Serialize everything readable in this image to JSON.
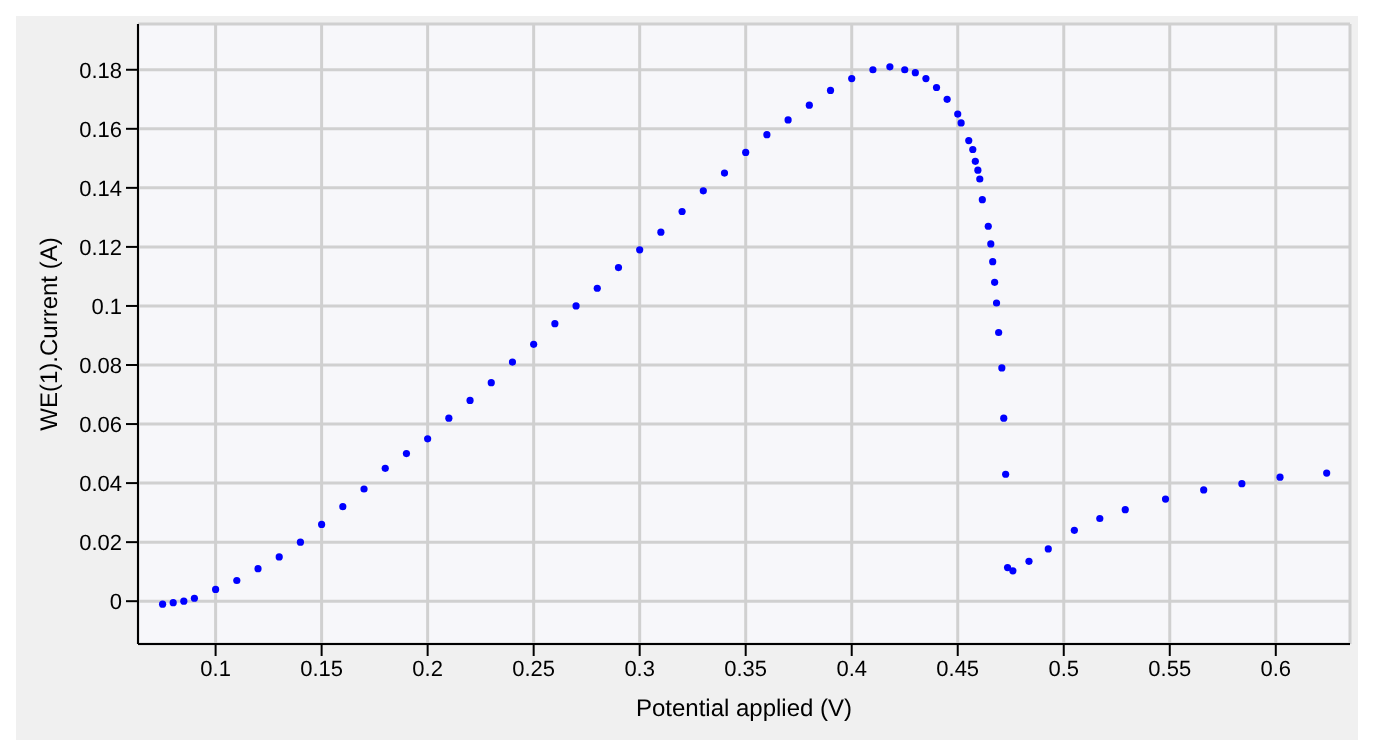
{
  "chart_data": {
    "type": "scatter",
    "xlabel": "Potential applied (V)",
    "ylabel": "WE(1).Current (A)",
    "xlim": [
      0.0634,
      0.635
    ],
    "ylim": [
      -0.0145,
      0.1955
    ],
    "xticks": [
      0.1,
      0.15,
      0.2,
      0.25,
      0.3,
      0.35,
      0.4,
      0.45,
      0.5,
      0.55,
      0.6
    ],
    "yticks": [
      0,
      0.02,
      0.04,
      0.06,
      0.08,
      0.1,
      0.12,
      0.14,
      0.16,
      0.18
    ],
    "grid": true,
    "legend": false,
    "marker": "circle",
    "series": [
      {
        "color": "#0000ff",
        "x": [
          0.075,
          0.08,
          0.085,
          0.09,
          0.1,
          0.11,
          0.12,
          0.13,
          0.14,
          0.15,
          0.16,
          0.17,
          0.18,
          0.19,
          0.2,
          0.21,
          0.22,
          0.23,
          0.24,
          0.25,
          0.26,
          0.27,
          0.28,
          0.29,
          0.3,
          0.31,
          0.32,
          0.33,
          0.34,
          0.35,
          0.36,
          0.37,
          0.38,
          0.39,
          0.4,
          0.41,
          0.418,
          0.425,
          0.43,
          0.435,
          0.44,
          0.445,
          0.45,
          0.4516,
          0.4552,
          0.4571,
          0.4583,
          0.4595,
          0.4604,
          0.4616,
          0.4644,
          0.4656,
          0.4665,
          0.4674,
          0.4683,
          0.4693,
          0.4708,
          0.4717,
          0.4726,
          0.4735,
          0.476,
          0.4836,
          0.4927,
          0.505,
          0.517,
          0.529,
          0.548,
          0.566,
          0.584,
          0.602,
          0.624
        ],
        "values": [
          -0.001,
          -0.0005,
          0,
          0.001,
          0.004,
          0.007,
          0.011,
          0.015,
          0.02,
          0.026,
          0.032,
          0.038,
          0.045,
          0.05,
          0.055,
          0.062,
          0.068,
          0.074,
          0.081,
          0.087,
          0.094,
          0.1,
          0.106,
          0.113,
          0.119,
          0.125,
          0.132,
          0.139,
          0.145,
          0.152,
          0.158,
          0.163,
          0.168,
          0.173,
          0.177,
          0.18,
          0.181,
          0.18,
          0.179,
          0.177,
          0.174,
          0.17,
          0.165,
          0.162,
          0.156,
          0.153,
          0.149,
          0.146,
          0.143,
          0.136,
          0.127,
          0.121,
          0.115,
          0.108,
          0.101,
          0.091,
          0.079,
          0.062,
          0.043,
          0.0114,
          0.0103,
          0.0135,
          0.0177,
          0.024,
          0.028,
          0.031,
          0.0346,
          0.0377,
          0.0398,
          0.042,
          0.0434
        ]
      }
    ]
  }
}
